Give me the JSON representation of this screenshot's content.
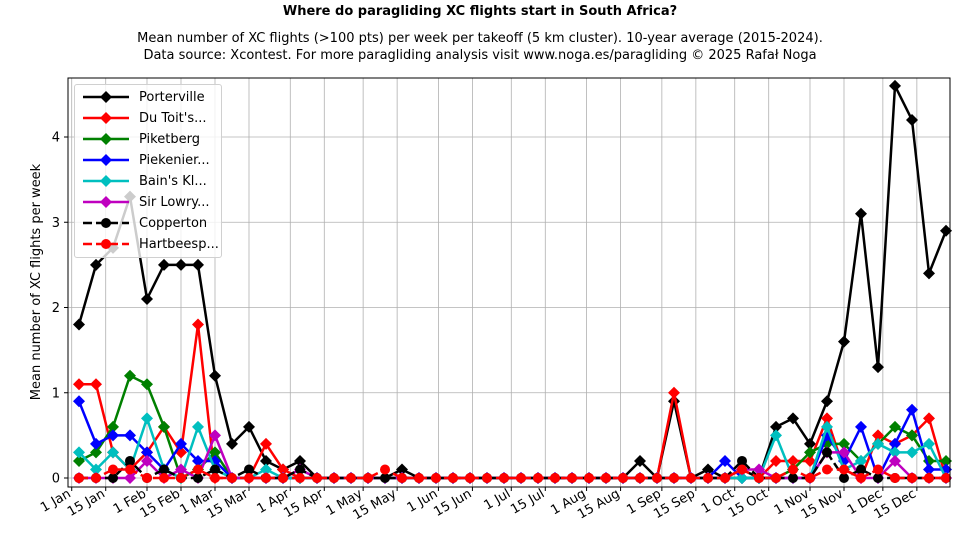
{
  "header": {
    "title": "Where do paragliding XC flights start in South Africa?",
    "subtitle_line1": "Mean number of XC flights (>100 pts) per week per takeoff (5 km cluster). 10-year average (2015-2024).",
    "subtitle_line2": "Data source: Xcontest. For more paragliding analysis visit www.noga.es/paragliding © 2025 Rafał Noga"
  },
  "chart_data": {
    "type": "line",
    "title": "Where do paragliding XC flights start in South Africa?",
    "subtitle": "Mean number of XC flights (>100 pts) per week per takeoff (5 km cluster). 10-year average (2015-2024). Data source: Xcontest. For more paragliding analysis visit www.noga.es/paragliding © 2025 Rafał Noga",
    "xlabel": "",
    "ylabel": "Mean number of XC flights per week",
    "ylim": [
      -0.08,
      4.7
    ],
    "yticks": [
      0,
      1,
      2,
      3,
      4
    ],
    "xtick_labels": [
      "1 Jan",
      "15 Jan",
      "1 Feb",
      "15 Feb",
      "1 Mar",
      "15 Mar",
      "1 Apr",
      "15 Apr",
      "1 May",
      "15 May",
      "1 Jun",
      "15 Jun",
      "1 Jul",
      "15 Jul",
      "1 Aug",
      "15 Aug",
      "1 Sep",
      "15 Sep",
      "1 Oct",
      "15 Oct",
      "1 Nov",
      "15 Nov",
      "1 Dec",
      "15 Dec"
    ],
    "grid": true,
    "legend_position": "upper left",
    "x": [
      1,
      2,
      3,
      4,
      5,
      6,
      7,
      8,
      9,
      10,
      11,
      12,
      13,
      14,
      15,
      16,
      17,
      18,
      19,
      20,
      21,
      22,
      23,
      24,
      25,
      26,
      27,
      28,
      29,
      30,
      31,
      32,
      33,
      34,
      35,
      36,
      37,
      38,
      39,
      40,
      41,
      42,
      43,
      44,
      45,
      46,
      47,
      48,
      49,
      50,
      51,
      52
    ],
    "x_unit": "week of year",
    "series": [
      {
        "name": "Porterville",
        "color": "#000000",
        "marker": "diamond",
        "linestyle": "solid",
        "values": [
          1.8,
          2.5,
          2.7,
          3.3,
          2.1,
          2.5,
          2.5,
          2.5,
          1.2,
          0.4,
          0.6,
          0.2,
          0.1,
          0.2,
          0.0,
          0.0,
          0.0,
          0.0,
          0.0,
          0.1,
          0.0,
          0.0,
          0.0,
          0.0,
          0.0,
          0.0,
          0.0,
          0.0,
          0.0,
          0.0,
          0.0,
          0.0,
          0.0,
          0.2,
          0.0,
          0.9,
          0.0,
          0.1,
          0.0,
          0.1,
          0.0,
          0.6,
          0.7,
          0.4,
          0.9,
          1.6,
          3.1,
          1.3,
          4.6,
          4.2,
          2.4,
          2.9
        ]
      },
      {
        "name": "Du Toit's...",
        "color": "#ff0000",
        "marker": "diamond",
        "linestyle": "solid",
        "values": [
          1.1,
          1.1,
          0.3,
          0.1,
          0.3,
          0.6,
          0.3,
          1.8,
          0.0,
          0.0,
          0.0,
          0.4,
          0.1,
          0.0,
          0.0,
          0.0,
          0.0,
          0.0,
          0.0,
          0.0,
          0.0,
          0.0,
          0.0,
          0.0,
          0.0,
          0.0,
          0.0,
          0.0,
          0.0,
          0.0,
          0.0,
          0.0,
          0.0,
          0.0,
          0.0,
          1.0,
          0.0,
          0.0,
          0.0,
          0.0,
          0.0,
          0.2,
          0.2,
          0.2,
          0.7,
          0.1,
          0.0,
          0.5,
          0.4,
          0.5,
          0.7,
          0.0
        ]
      },
      {
        "name": "Piketberg",
        "color": "#008000",
        "marker": "diamond",
        "linestyle": "solid",
        "values": [
          0.2,
          0.3,
          0.6,
          1.2,
          1.1,
          0.6,
          0.0,
          0.1,
          0.3,
          0.0,
          0.0,
          0.0,
          0.0,
          0.0,
          0.0,
          0.0,
          0.0,
          0.0,
          0.0,
          0.0,
          0.0,
          0.0,
          0.0,
          0.0,
          0.0,
          0.0,
          0.0,
          0.0,
          0.0,
          0.0,
          0.0,
          0.0,
          0.0,
          0.0,
          0.0,
          0.0,
          0.0,
          0.0,
          0.0,
          0.0,
          0.0,
          0.0,
          0.1,
          0.3,
          0.4,
          0.4,
          0.2,
          0.4,
          0.6,
          0.5,
          0.2,
          0.2
        ]
      },
      {
        "name": "Piekenier...",
        "color": "#0000ff",
        "marker": "diamond",
        "linestyle": "solid",
        "values": [
          0.9,
          0.4,
          0.5,
          0.5,
          0.3,
          0.1,
          0.4,
          0.2,
          0.2,
          0.0,
          0.0,
          0.0,
          0.0,
          0.0,
          0.0,
          0.0,
          0.0,
          0.0,
          0.0,
          0.0,
          0.0,
          0.0,
          0.0,
          0.0,
          0.0,
          0.0,
          0.0,
          0.0,
          0.0,
          0.0,
          0.0,
          0.0,
          0.0,
          0.0,
          0.0,
          0.0,
          0.0,
          0.0,
          0.2,
          0.0,
          0.0,
          0.0,
          0.0,
          0.0,
          0.5,
          0.2,
          0.6,
          0.0,
          0.4,
          0.8,
          0.1,
          0.1
        ]
      },
      {
        "name": "Bain's Kl...",
        "color": "#00bfbf",
        "marker": "diamond",
        "linestyle": "solid",
        "values": [
          0.3,
          0.1,
          0.3,
          0.1,
          0.7,
          0.1,
          0.0,
          0.6,
          0.1,
          0.0,
          0.0,
          0.1,
          0.0,
          0.0,
          0.0,
          0.0,
          0.0,
          0.0,
          0.0,
          0.0,
          0.0,
          0.0,
          0.0,
          0.0,
          0.0,
          0.0,
          0.0,
          0.0,
          0.0,
          0.0,
          0.0,
          0.0,
          0.0,
          0.0,
          0.0,
          0.0,
          0.0,
          0.0,
          0.0,
          0.0,
          0.0,
          0.5,
          0.0,
          0.0,
          0.6,
          0.1,
          0.2,
          0.4,
          0.3,
          0.3,
          0.4,
          0.0
        ]
      },
      {
        "name": "Sir Lowry...",
        "color": "#bf00bf",
        "marker": "diamond",
        "linestyle": "solid",
        "values": [
          0.0,
          0.0,
          0.0,
          0.0,
          0.2,
          0.0,
          0.1,
          0.0,
          0.5,
          0.0,
          0.0,
          0.0,
          0.0,
          0.1,
          0.0,
          0.0,
          0.0,
          0.0,
          0.0,
          0.0,
          0.0,
          0.0,
          0.0,
          0.0,
          0.0,
          0.0,
          0.0,
          0.0,
          0.0,
          0.0,
          0.0,
          0.0,
          0.0,
          0.0,
          0.0,
          0.0,
          0.0,
          0.0,
          0.0,
          0.1,
          0.1,
          0.0,
          0.0,
          0.0,
          0.3,
          0.3,
          0.0,
          0.0,
          0.2,
          0.0,
          0.0,
          0.0
        ]
      },
      {
        "name": "Copperton",
        "color": "#000000",
        "marker": "circle",
        "linestyle": "dashed",
        "values": [
          0.0,
          0.0,
          0.0,
          0.2,
          0.0,
          0.1,
          0.0,
          0.0,
          0.1,
          0.0,
          0.1,
          0.0,
          0.0,
          0.1,
          0.0,
          0.0,
          0.0,
          0.0,
          0.0,
          0.0,
          0.0,
          0.0,
          0.0,
          0.0,
          0.0,
          0.0,
          0.0,
          0.0,
          0.0,
          0.0,
          0.0,
          0.0,
          0.0,
          0.0,
          0.0,
          0.0,
          0.0,
          0.0,
          0.0,
          0.2,
          0.0,
          0.0,
          0.0,
          0.0,
          0.3,
          0.0,
          0.1,
          0.0,
          0.0,
          0.0,
          0.0,
          0.0
        ]
      },
      {
        "name": "Hartbeesp...",
        "color": "#ff0000",
        "marker": "circle",
        "linestyle": "dashed",
        "values": [
          0.0,
          0.0,
          0.1,
          0.1,
          0.0,
          0.0,
          0.0,
          0.1,
          0.0,
          0.0,
          0.0,
          0.0,
          0.0,
          0.0,
          0.0,
          0.0,
          0.0,
          0.0,
          0.1,
          0.0,
          0.0,
          0.0,
          0.0,
          0.0,
          0.0,
          0.0,
          0.0,
          0.0,
          0.0,
          0.0,
          0.0,
          0.0,
          0.0,
          0.0,
          0.0,
          0.0,
          0.0,
          0.0,
          0.0,
          0.1,
          0.0,
          0.0,
          0.1,
          0.0,
          0.1,
          0.1,
          0.0,
          0.1,
          0.0,
          0.0,
          0.0,
          0.0
        ]
      }
    ]
  },
  "axes": {
    "ylabel": "Mean number of XC flights per week",
    "ytick_labels": [
      "0",
      "1",
      "2",
      "3",
      "4"
    ]
  },
  "legend": {
    "items": [
      {
        "label": "Porterville"
      },
      {
        "label": "Du Toit's..."
      },
      {
        "label": "Piketberg"
      },
      {
        "label": "Piekenier..."
      },
      {
        "label": "Bain's Kl..."
      },
      {
        "label": "Sir Lowry..."
      },
      {
        "label": "Copperton"
      },
      {
        "label": "Hartbeesp..."
      }
    ]
  }
}
